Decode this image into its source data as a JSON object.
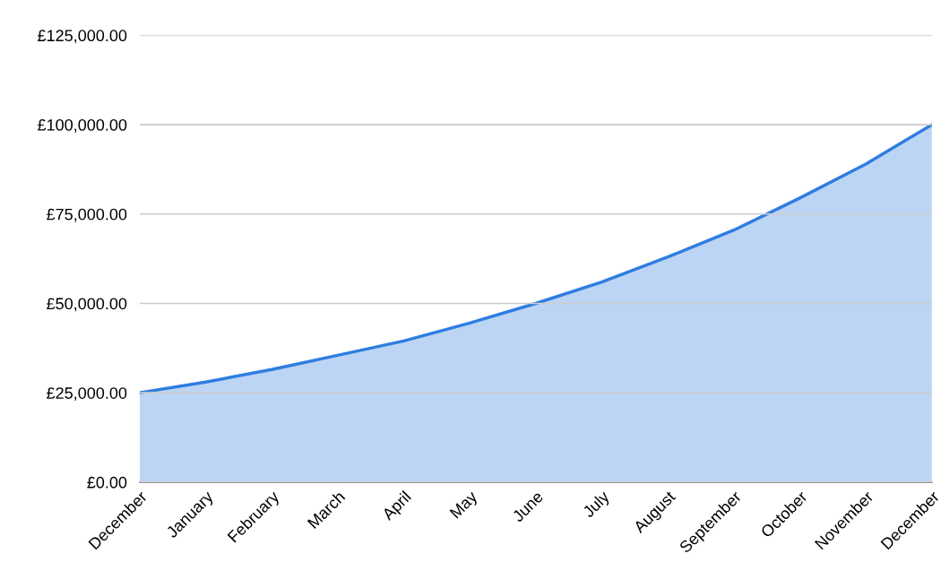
{
  "chart_data": {
    "type": "area",
    "categories": [
      "December",
      "January",
      "February",
      "March",
      "April",
      "May",
      "June",
      "July",
      "August",
      "September",
      "October",
      "November",
      "December"
    ],
    "series": [
      {
        "color": "#2f7de1",
        "values": [
          25000,
          28000,
          31500,
          35500,
          39500,
          44500,
          50000,
          56000,
          63000,
          70500,
          79500,
          89000,
          100000
        ]
      }
    ],
    "ylim": [
      0,
      125000
    ],
    "yticks": [
      {
        "value": 0,
        "label": "£0.00"
      },
      {
        "value": 25000,
        "label": "£25,000.00"
      },
      {
        "value": 50000,
        "label": "£50,000.00"
      },
      {
        "value": 75000,
        "label": "£75,000.00"
      },
      {
        "value": 100000,
        "label": "£100,000.00"
      },
      {
        "value": 125000,
        "label": "£125,000.00"
      }
    ],
    "grid": "y"
  }
}
